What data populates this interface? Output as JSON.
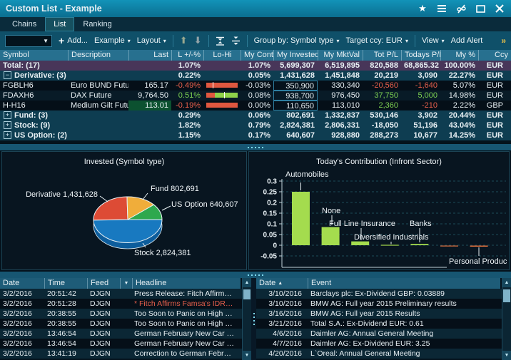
{
  "theme": {
    "positive": "#7dd152",
    "negative": "#e8604c",
    "bar_red": "#e0573f",
    "bar_green": "#8fd24a",
    "accent_teal": "#0e7ea1"
  },
  "titlebar": {
    "title": "Custom List - Example"
  },
  "tabs": [
    {
      "label": "Chains",
      "active": false
    },
    {
      "label": "List",
      "active": true
    },
    {
      "label": "Ranking",
      "active": false
    }
  ],
  "toolbar": {
    "symbol_combo_value": "",
    "add_label": "Add...",
    "example_label": "Example",
    "layout_label": "Layout",
    "group_by_label": "Group by: Symbol type",
    "target_ccy_label": "Target ccy: EUR",
    "view_label": "View",
    "add_alert_label": "Add Alert",
    "overflow_label": "»"
  },
  "positions_table": {
    "columns": [
      "Symbol",
      "Description",
      "Last",
      "L +/-%",
      "Lo-Hi",
      "My Contr",
      "My Invested",
      "My MktVal",
      "Tot P/L",
      "Todays P/L",
      "My %",
      "Ccy"
    ],
    "rows": [
      {
        "kind": "total",
        "symbol": "Total: (17)",
        "description": "",
        "last": "",
        "chg": "1.07%",
        "chg_color": null,
        "lohi": null,
        "contr": "1.07%",
        "invested": "5,699,307",
        "invested_boxed": false,
        "mktval": "6,519,895",
        "totpl": "820,588",
        "totpl_color": null,
        "todaypl": "68,865.32",
        "todaypl_color": null,
        "mypct": "100.00%",
        "ccy": "EUR"
      },
      {
        "kind": "group",
        "expand": "expanded",
        "symbol": "Derivative: (3)",
        "description": "",
        "last": "",
        "chg": "0.22%",
        "chg_color": null,
        "lohi": null,
        "contr": "0.05%",
        "invested": "1,431,628",
        "invested_boxed": false,
        "mktval": "1,451,848",
        "totpl": "20,219",
        "totpl_color": null,
        "todaypl": "3,090",
        "todaypl_color": null,
        "mypct": "22.27%",
        "ccy": "EUR"
      },
      {
        "kind": "item",
        "symbol": "FGBLH6",
        "description": "Euro BUND Future",
        "last": "165.17",
        "last_highlight": false,
        "chg": "-0.49%",
        "chg_color": "negative",
        "lohi": {
          "segments": [
            {
              "color": "bar_red",
              "pct": 100
            }
          ],
          "tick_pct": 20
        },
        "contr": "-0.03%",
        "invested": "350,900",
        "invested_boxed": true,
        "mktval": "330,340",
        "totpl": "-20,560",
        "totpl_color": "negative",
        "todaypl": "-1,640",
        "todaypl_color": "negative",
        "mypct": "5.07%",
        "ccy": "EUR"
      },
      {
        "kind": "item",
        "symbol": "FDAXH6",
        "description": "DAX Future",
        "last": "9,764.50",
        "last_highlight": false,
        "chg": "0.51%",
        "chg_color": "positive",
        "lohi": {
          "segments": [
            {
              "color": "bar_red",
              "pct": 27
            },
            {
              "color": "bar_green",
              "pct": 73
            }
          ],
          "tick_pct": 57
        },
        "contr": "0.08%",
        "invested": "938,700",
        "invested_boxed": true,
        "mktval": "976,450",
        "totpl": "37,750",
        "totpl_color": "positive",
        "todaypl": "5,000",
        "todaypl_color": "positive",
        "mypct": "14.98%",
        "ccy": "EUR"
      },
      {
        "kind": "item",
        "symbol": "H-H16",
        "description": "Medium Gilt Future",
        "last": "113.01",
        "last_highlight": true,
        "chg": "-0.19%",
        "chg_color": "negative",
        "lohi": {
          "segments": [
            {
              "color": "bar_red",
              "pct": 100
            }
          ],
          "tick_pct": null
        },
        "contr": "0.00%",
        "invested": "110,650",
        "invested_boxed": true,
        "mktval": "113,010",
        "totpl": "2,360",
        "totpl_color": "positive",
        "todaypl": "-210",
        "todaypl_color": "negative",
        "mypct": "2.22%",
        "ccy": "GBP"
      },
      {
        "kind": "group",
        "expand": "collapsed",
        "symbol": "Fund: (3)",
        "description": "",
        "last": "",
        "chg": "0.29%",
        "chg_color": null,
        "lohi": null,
        "contr": "0.06%",
        "invested": "802,691",
        "invested_boxed": false,
        "mktval": "1,332,837",
        "totpl": "530,146",
        "totpl_color": null,
        "todaypl": "3,902",
        "todaypl_color": null,
        "mypct": "20.44%",
        "ccy": "EUR"
      },
      {
        "kind": "group",
        "expand": "collapsed",
        "symbol": "Stock: (9)",
        "description": "",
        "last": "",
        "chg": "1.82%",
        "chg_color": null,
        "lohi": null,
        "contr": "0.79%",
        "invested": "2,824,381",
        "invested_boxed": false,
        "mktval": "2,806,331",
        "totpl": "-18,050",
        "totpl_color": null,
        "todaypl": "51,196",
        "todaypl_color": null,
        "mypct": "43.04%",
        "ccy": "EUR"
      },
      {
        "kind": "group",
        "expand": "collapsed",
        "symbol": "US Option: (2)",
        "description": "",
        "last": "",
        "chg": "1.15%",
        "chg_color": null,
        "lohi": null,
        "contr": "0.17%",
        "invested": "640,607",
        "invested_boxed": false,
        "mktval": "928,880",
        "totpl": "288,273",
        "totpl_color": null,
        "todaypl": "10,677",
        "todaypl_color": null,
        "mypct": "14.25%",
        "ccy": "EUR"
      }
    ]
  },
  "chart_data": [
    {
      "type": "pie",
      "title": "Invested (Symbol type)",
      "style": "3d",
      "start_angle_deg": 178.4,
      "slices": [
        {
          "name": "Derivative",
          "value": 1431628,
          "label": "Derivative 1,431,628",
          "color": "#dd4b35"
        },
        {
          "name": "Fund",
          "value": 802691,
          "label": "Fund 802,691",
          "color": "#f0ad3a"
        },
        {
          "name": "US Option",
          "value": 640607,
          "label": "US Option 640,607",
          "color": "#2ea84d"
        },
        {
          "name": "Stock",
          "value": 2824381,
          "label": "Stock 2,824,381",
          "color": "#1879c0"
        }
      ],
      "depth_color": "#0d5d9c"
    },
    {
      "type": "bar",
      "title": "Today's Contribution (Infront Sector)",
      "categories": [
        "Automobiles",
        "None",
        "Full Line Insurance",
        "Diversified Industrials",
        "Banks",
        "",
        "Personal Produc"
      ],
      "values": [
        0.25,
        0.085,
        0.018,
        0.002,
        0.006,
        -0.003,
        -0.005
      ],
      "ylim": [
        -0.05,
        0.3
      ],
      "yticks": [
        0.3,
        0.25,
        0.2,
        0.15,
        0.1,
        0.05,
        0,
        -0.05
      ],
      "positive_color": "#a4dc4e",
      "negative_color": "#e0703c",
      "grid": "dashed"
    }
  ],
  "news_panel": {
    "columns": [
      "Date",
      "Time",
      "Feed",
      "Headline"
    ],
    "rows": [
      {
        "date": "3/2/2016",
        "time": "20:51:42",
        "feed": "DJGN",
        "headline": "Press Release: Fitch Affirm…",
        "red": false
      },
      {
        "date": "3/2/2016",
        "time": "20:51:28",
        "feed": "DJGN",
        "headline": "* Fitch Affirms Famsa's IDR…",
        "red": true
      },
      {
        "date": "3/2/2016",
        "time": "20:38:55",
        "feed": "DJGN",
        "headline": "Too Soon to Panic on High …",
        "red": false
      },
      {
        "date": "3/2/2016",
        "time": "20:38:55",
        "feed": "DJGN",
        "headline": "Too Soon to Panic on High …",
        "red": false
      },
      {
        "date": "3/2/2016",
        "time": "13:46:54",
        "feed": "DJGN",
        "headline": "German February New Car …",
        "red": false
      },
      {
        "date": "3/2/2016",
        "time": "13:46:54",
        "feed": "DJGN",
        "headline": "German February New Car …",
        "red": false
      },
      {
        "date": "3/2/2016",
        "time": "13:41:19",
        "feed": "DJGN",
        "headline": "Correction to German Febr…",
        "red": false
      }
    ]
  },
  "events_panel": {
    "columns": [
      "Date",
      "Event"
    ],
    "sort": "Date ascending",
    "rows": [
      {
        "date": "3/10/2016",
        "event": "Barclays plc: Ex-Dividend GBP: 0.03889"
      },
      {
        "date": "3/10/2016",
        "event": "BMW AG: Full year 2015 Preliminary results"
      },
      {
        "date": "3/16/2016",
        "event": "BMW AG: Full year 2015 Results"
      },
      {
        "date": "3/21/2016",
        "event": "Total S.A.: Ex-Dividend EUR: 0.61"
      },
      {
        "date": "4/6/2016",
        "event": "Daimler AG: Annual General Meeting"
      },
      {
        "date": "4/7/2016",
        "event": "Daimler AG: Ex-Dividend EUR: 3.25"
      },
      {
        "date": "4/20/2016",
        "event": "L`Oreal: Annual General Meeting"
      }
    ]
  }
}
